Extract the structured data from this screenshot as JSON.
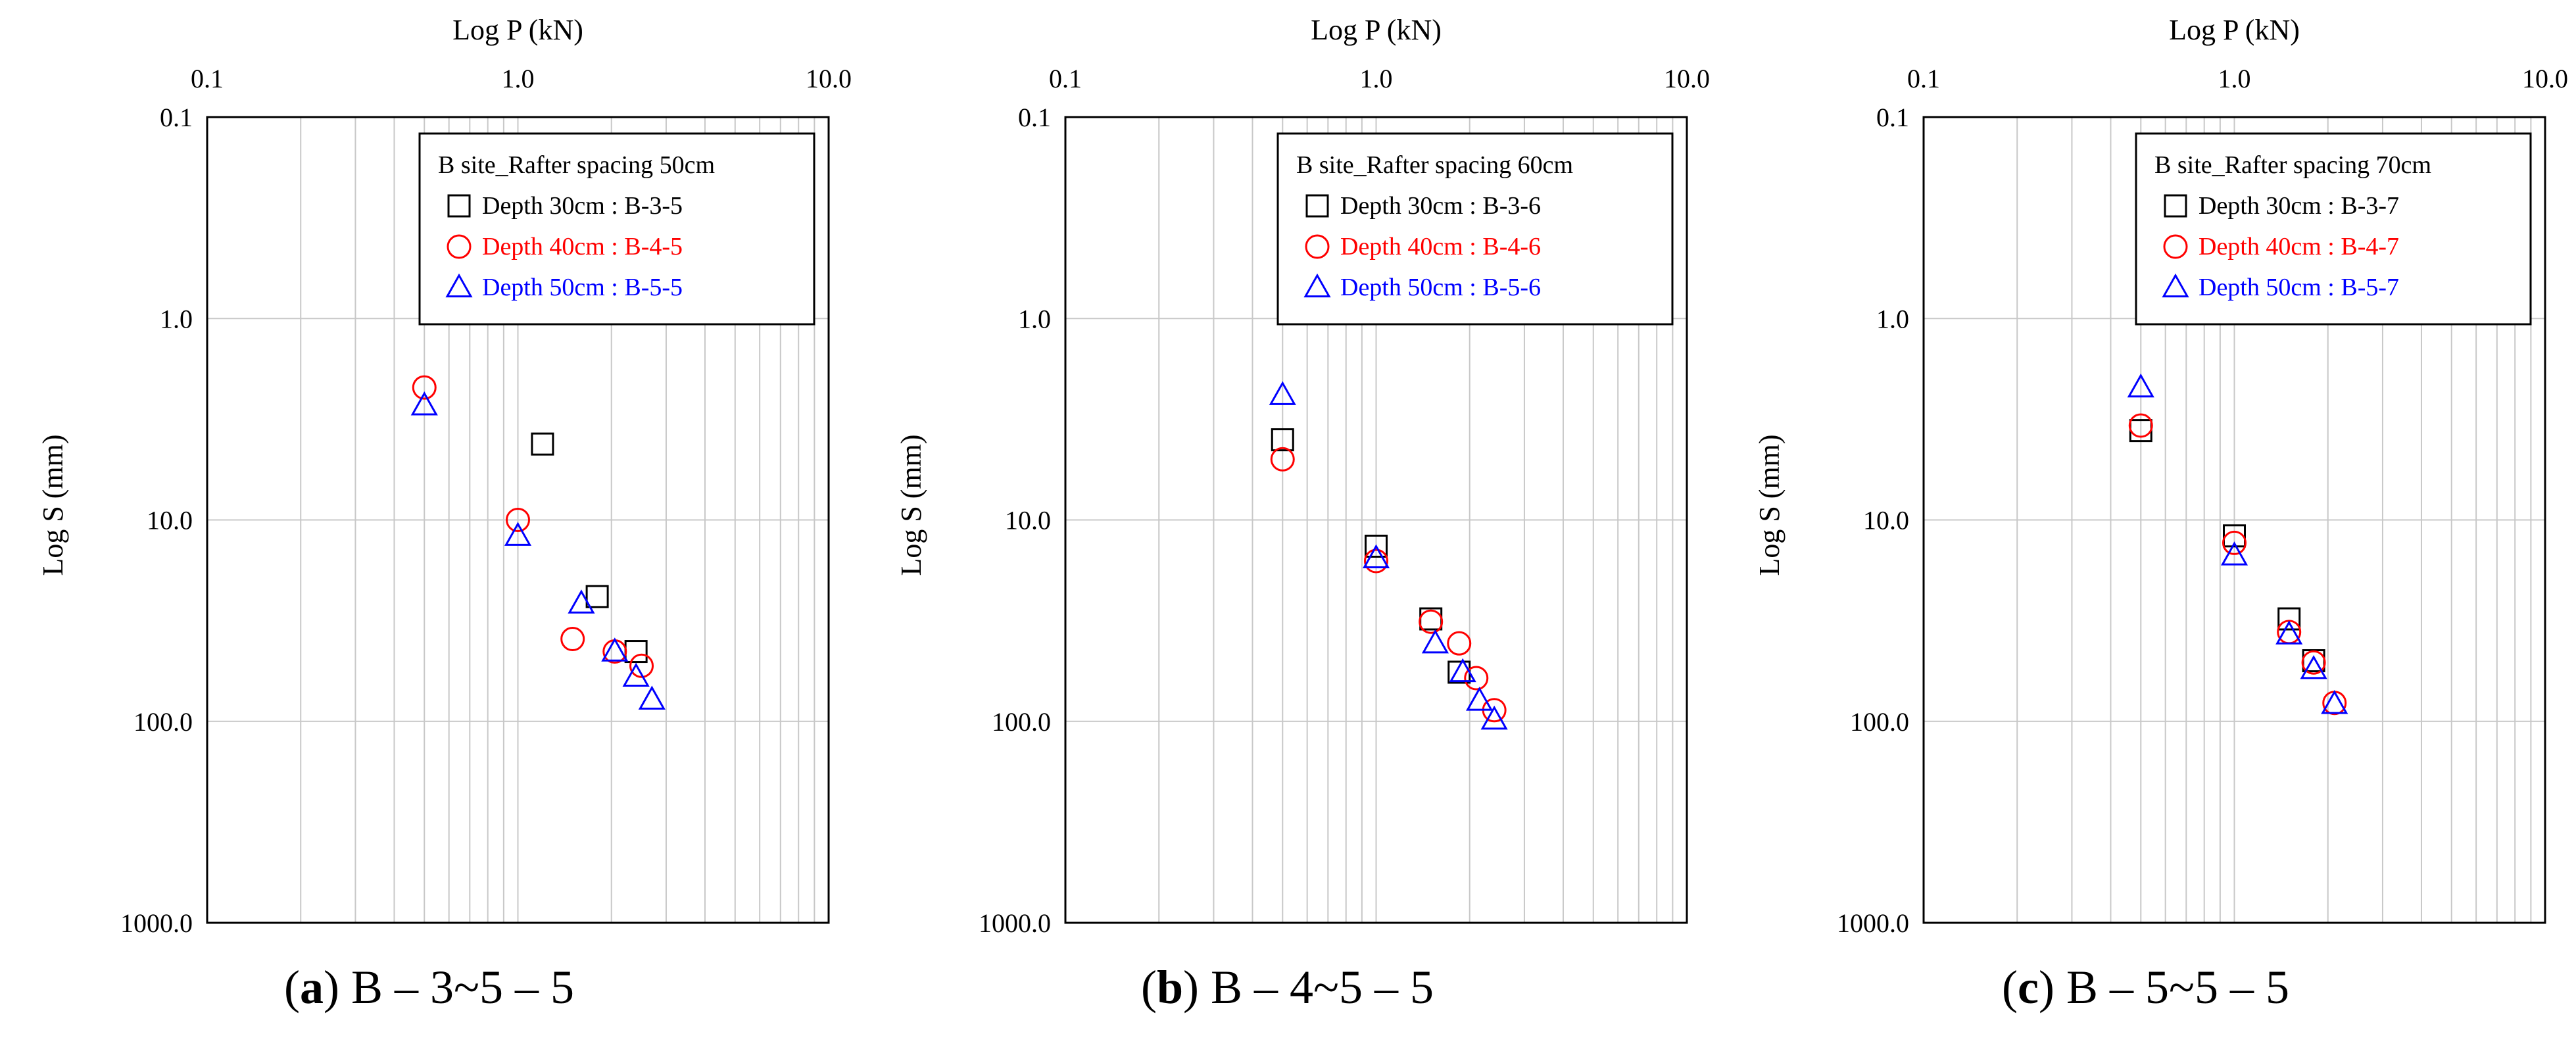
{
  "chart_data": [
    {
      "type": "scatter",
      "id": "a",
      "caption_letter": "a",
      "caption_text": "B – 3~5 – 5",
      "xlabel": "Log P (kN)",
      "ylabel": "Log S (mm)",
      "x_scale": "log",
      "y_scale": "log",
      "xlim": [
        0.1,
        10.0
      ],
      "ylim": [
        0.1,
        1000.0
      ],
      "y_inverted": true,
      "x_ticks": [
        "0.1",
        "1.0",
        "10.0"
      ],
      "y_ticks": [
        "0.1",
        "1.0",
        "10.0",
        "100.0",
        "1000.0"
      ],
      "grid": true,
      "legend_position": "top-right",
      "legend_title": "B site_Rafter spacing  50cm",
      "series": [
        {
          "name": "Depth 30cm : B-3-5",
          "marker": "square",
          "color": "#000000",
          "points": [
            [
              1.2,
              4.2
            ],
            [
              1.8,
              24.0
            ],
            [
              2.4,
              45.0
            ]
          ]
        },
        {
          "name": "Depth 40cm : B-4-5",
          "marker": "circle",
          "color": "#ff0000",
          "points": [
            [
              0.5,
              2.2
            ],
            [
              1.0,
              10.0
            ],
            [
              1.5,
              39.0
            ],
            [
              2.05,
              45.0
            ],
            [
              2.5,
              53.0
            ]
          ]
        },
        {
          "name": "Depth 50cm : B-5-5",
          "marker": "triangle",
          "color": "#0000ff",
          "points": [
            [
              0.5,
              2.7
            ],
            [
              1.0,
              12.0
            ],
            [
              1.6,
              26.0
            ],
            [
              2.05,
              45.0
            ],
            [
              2.4,
              60.0
            ],
            [
              2.7,
              78.0
            ]
          ]
        }
      ]
    },
    {
      "type": "scatter",
      "id": "b",
      "caption_letter": "b",
      "caption_text": "B – 4~5 – 5",
      "xlabel": "Log P (kN)",
      "ylabel": "Log S (mm)",
      "x_scale": "log",
      "y_scale": "log",
      "xlim": [
        0.1,
        10.0
      ],
      "ylim": [
        0.1,
        1000.0
      ],
      "y_inverted": true,
      "x_ticks": [
        "0.1",
        "1.0",
        "10.0"
      ],
      "y_ticks": [
        "0.1",
        "1.0",
        "10.0",
        "100.0",
        "1000.0"
      ],
      "grid": true,
      "legend_position": "top-right",
      "legend_title": "B site_Rafter spacing  60cm",
      "series": [
        {
          "name": "Depth 30cm : B-3-6",
          "marker": "square",
          "color": "#000000",
          "points": [
            [
              0.5,
              4.0
            ],
            [
              1.0,
              13.5
            ],
            [
              1.5,
              31.0
            ],
            [
              1.85,
              57.0
            ]
          ]
        },
        {
          "name": "Depth 40cm : B-4-6",
          "marker": "circle",
          "color": "#ff0000",
          "points": [
            [
              0.5,
              5.0
            ],
            [
              1.0,
              16.0
            ],
            [
              1.5,
              32.0
            ],
            [
              1.85,
              41.0
            ],
            [
              2.1,
              61.0
            ],
            [
              2.4,
              88.0
            ]
          ]
        },
        {
          "name": "Depth 50cm : B-5-6",
          "marker": "triangle",
          "color": "#0000ff",
          "points": [
            [
              0.5,
              2.4
            ],
            [
              1.0,
              15.5
            ],
            [
              1.55,
              41.0
            ],
            [
              1.9,
              57.0
            ],
            [
              2.15,
              79.0
            ],
            [
              2.4,
              98.0
            ]
          ]
        }
      ]
    },
    {
      "type": "scatter",
      "id": "c",
      "caption_letter": "c",
      "caption_text": "B – 5~5 – 5",
      "xlabel": "Log P (kN)",
      "ylabel": "Log S (mm)",
      "x_scale": "log",
      "y_scale": "log",
      "xlim": [
        0.1,
        10.0
      ],
      "ylim": [
        0.1,
        1000.0
      ],
      "y_inverted": true,
      "x_ticks": [
        "0.1",
        "1.0",
        "10.0"
      ],
      "y_ticks": [
        "0.1",
        "1.0",
        "10.0",
        "100.0",
        "1000.0"
      ],
      "grid": true,
      "legend_position": "top-right",
      "legend_title": "B site_Rafter spacing  70cm",
      "series": [
        {
          "name": "Depth 30cm : B-3-7",
          "marker": "square",
          "color": "#000000",
          "points": [
            [
              0.5,
              3.6
            ],
            [
              1.0,
              12.0
            ],
            [
              1.5,
              31.0
            ],
            [
              1.8,
              50.0
            ]
          ]
        },
        {
          "name": "Depth 40cm : B-4-7",
          "marker": "circle",
          "color": "#ff0000",
          "points": [
            [
              0.5,
              3.4
            ],
            [
              1.0,
              13.0
            ],
            [
              1.5,
              36.0
            ],
            [
              1.8,
              51.0
            ],
            [
              2.1,
              81.0
            ]
          ]
        },
        {
          "name": "Depth 50cm : B-5-7",
          "marker": "triangle",
          "color": "#0000ff",
          "points": [
            [
              0.5,
              2.2
            ],
            [
              1.0,
              15.0
            ],
            [
              1.5,
              37.0
            ],
            [
              1.8,
              55.0
            ],
            [
              2.1,
              82.0
            ]
          ]
        }
      ]
    }
  ]
}
